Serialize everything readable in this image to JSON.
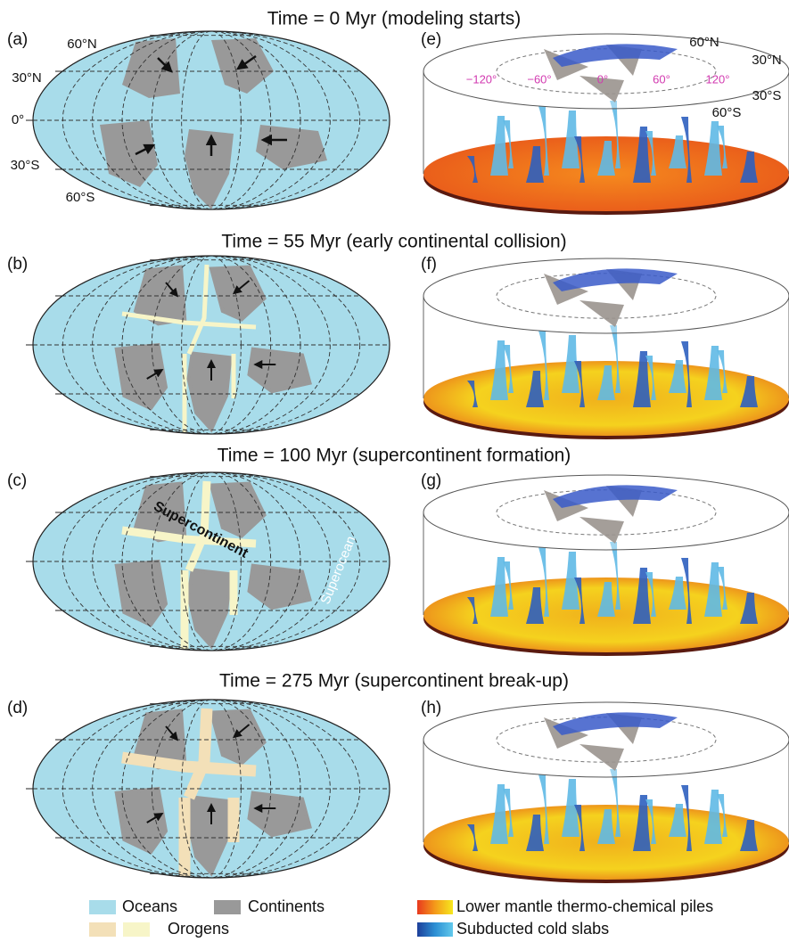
{
  "panels": [
    {
      "title": "Time = 0 Myr (modeling starts)",
      "map_label": "(a)",
      "model_label": "(e)"
    },
    {
      "title": "Time = 55 Myr (early continental collision)",
      "map_label": "(b)",
      "model_label": "(f)"
    },
    {
      "title": "Time = 100 Myr (supercontinent formation)",
      "map_label": "(c)",
      "model_label": "(g)"
    },
    {
      "title": "Time = 275 Myr (supercontinent break-up)",
      "map_label": "(d)",
      "model_label": "(h)"
    }
  ],
  "map_latitude_labels": [
    "60°N",
    "30°N",
    "0°",
    "30°S",
    "60°S"
  ],
  "model_latitude_labels": [
    "60°N",
    "30°N",
    "30°S",
    "60°S"
  ],
  "model_longitude_labels": [
    "−120°",
    "−60°",
    "0°",
    "60°",
    "120°"
  ],
  "annotations": {
    "supercontinent": "Supercontinent",
    "superocean": "Superocean"
  },
  "legend": {
    "oceans": "Oceans",
    "continents": "Continents",
    "orogens": "Orogens",
    "piles": "Lower mantle thermo-chemical piles",
    "slabs": "Subducted cold slabs"
  }
}
